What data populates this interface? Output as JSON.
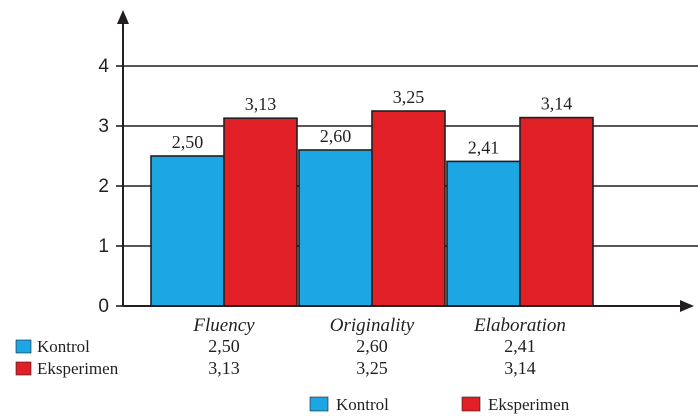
{
  "chart_data": {
    "type": "bar",
    "categories": [
      "Fluency",
      "Originality",
      "Elaboration"
    ],
    "series": [
      {
        "name": "Kontrol",
        "values": [
          2.5,
          2.6,
          2.41
        ],
        "labels": [
          "2,50",
          "2,60",
          "2,41"
        ]
      },
      {
        "name": "Eksperimen",
        "values": [
          3.13,
          3.25,
          3.14
        ],
        "labels": [
          "3,13",
          "3,25",
          "3,14"
        ]
      }
    ],
    "ylim": [
      0,
      4
    ],
    "yticks": [
      "0",
      "1",
      "2",
      "3",
      "4"
    ],
    "grid": true,
    "legend": "bottom-right",
    "table": {
      "rows": [
        {
          "name": "Kontrol",
          "cells": [
            "2,50",
            "2,60",
            "2,41"
          ]
        },
        {
          "name": "Eksperimen",
          "cells": [
            "3,13",
            "3,25",
            "3,14"
          ]
        }
      ]
    },
    "colors": {
      "Kontrol": "#1ca6e3",
      "Eksperimen": "#e01f26",
      "axis": "#231f20"
    }
  }
}
